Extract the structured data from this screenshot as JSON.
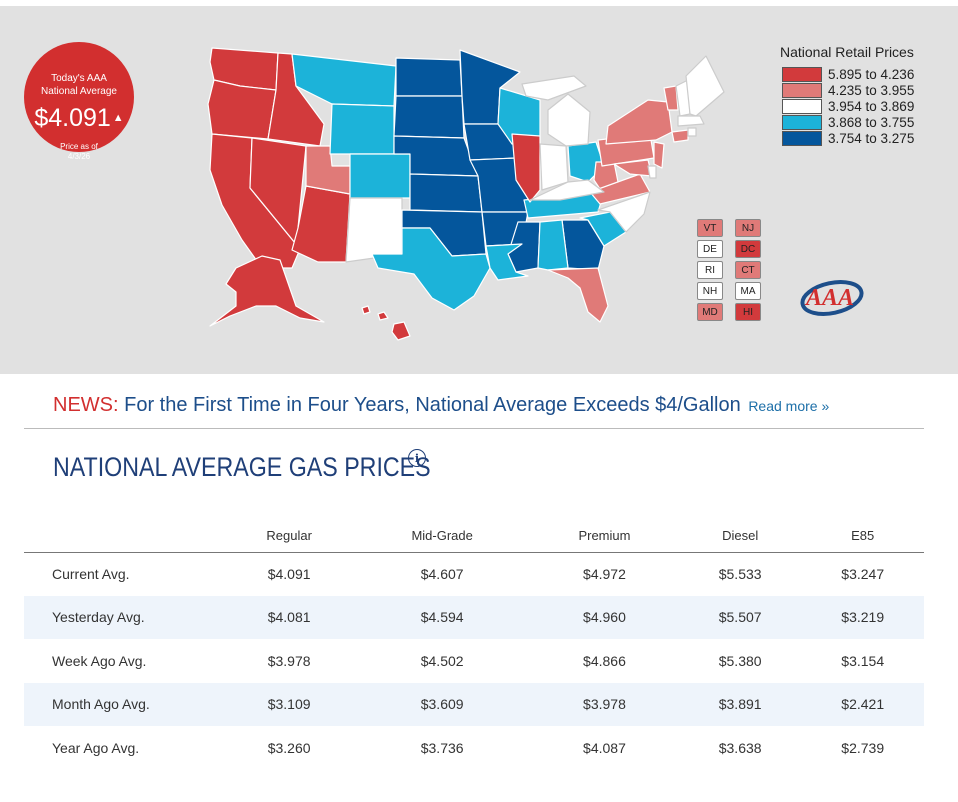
{
  "national": {
    "line1": "Today's AAA",
    "line2": "National Average",
    "price": "$4.091",
    "trend_icon": "up-triangle-icon",
    "as_of_label": "Price as of",
    "as_of_date": "4/3/26"
  },
  "legend": {
    "title": "National Retail Prices",
    "items": [
      {
        "label": "5.895 to 4.236",
        "color": "#d23a3c"
      },
      {
        "label": "4.235 to 3.955",
        "color": "#e07a78"
      },
      {
        "label": "3.954 to 3.869",
        "color": "#ffffff"
      },
      {
        "label": "3.868 to 3.755",
        "color": "#1cb3d9"
      },
      {
        "label": "3.754 to 3.275",
        "color": "#04569c"
      }
    ]
  },
  "small_states": [
    {
      "code": "VT",
      "color": "#e07a78"
    },
    {
      "code": "NJ",
      "color": "#e07a78"
    },
    {
      "code": "DE",
      "color": "#ffffff"
    },
    {
      "code": "DC",
      "color": "#d23a3c"
    },
    {
      "code": "RI",
      "color": "#ffffff"
    },
    {
      "code": "CT",
      "color": "#e07a78"
    },
    {
      "code": "NH",
      "color": "#ffffff"
    },
    {
      "code": "MA",
      "color": "#ffffff"
    },
    {
      "code": "MD",
      "color": "#e07a78"
    },
    {
      "code": "HI",
      "color": "#d23a3c"
    }
  ],
  "news": {
    "tag": "NEWS:",
    "headline": "For the First Time in Four Years, National Average Exceeds $4/Gallon",
    "link": "Read more »"
  },
  "section_title": "NATIONAL AVERAGE GAS PRICES",
  "info_icon_glyph": "i",
  "table": {
    "headers": [
      "",
      "Regular",
      "Mid-Grade",
      "Premium",
      "Diesel",
      "E85"
    ],
    "rows": [
      {
        "label": "Current Avg.",
        "values": [
          "$4.091",
          "$4.607",
          "$4.972",
          "$5.533",
          "$3.247"
        ]
      },
      {
        "label": "Yesterday Avg.",
        "values": [
          "$4.081",
          "$4.594",
          "$4.960",
          "$5.507",
          "$3.219"
        ]
      },
      {
        "label": "Week Ago Avg.",
        "values": [
          "$3.978",
          "$4.502",
          "$4.866",
          "$5.380",
          "$3.154"
        ]
      },
      {
        "label": "Month Ago Avg.",
        "values": [
          "$3.109",
          "$3.609",
          "$3.978",
          "$3.891",
          "$2.421"
        ]
      },
      {
        "label": "Year Ago Avg.",
        "values": [
          "$3.260",
          "$3.736",
          "$4.087",
          "$3.638",
          "$2.739"
        ]
      }
    ]
  },
  "logo_text": "AAA"
}
